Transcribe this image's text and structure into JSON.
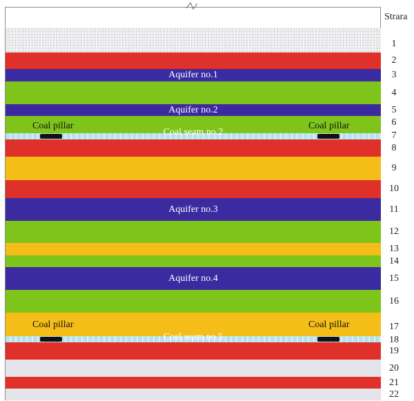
{
  "header": {
    "strata_label": "Strara"
  },
  "layers": [
    {
      "num": "1",
      "color": "#e8e8ea",
      "kind": "soil"
    },
    {
      "num": "2",
      "color": "#e0302a"
    },
    {
      "num": "3",
      "color": "#3b2aa0",
      "label": "Aquifer no.1"
    },
    {
      "num": "4",
      "color": "#7ec41a"
    },
    {
      "num": "5",
      "color": "#3b2aa0",
      "label": "Aquifer no.2"
    },
    {
      "num": "6",
      "color": "#7ec41a"
    },
    {
      "num": "7",
      "color": "#b5e2ef",
      "kind": "seam"
    },
    {
      "num": "8",
      "color": "#e0302a"
    },
    {
      "num": "9",
      "color": "#f5bd18"
    },
    {
      "num": "10",
      "color": "#e0302a"
    },
    {
      "num": "11",
      "color": "#3b2aa0",
      "label": "Aquifer no.3"
    },
    {
      "num": "12",
      "color": "#7ec41a"
    },
    {
      "num": "13",
      "color": "#f5bd18"
    },
    {
      "num": "14",
      "color": "#7ec41a"
    },
    {
      "num": "15",
      "color": "#3b2aa0",
      "label": "Aquifer no.4"
    },
    {
      "num": "16",
      "color": "#7ec41a"
    },
    {
      "num": "17",
      "color": "#f5bd18"
    },
    {
      "num": "18",
      "color": "#b5e2ef",
      "kind": "seam"
    },
    {
      "num": "19",
      "color": "#e0302a"
    },
    {
      "num": "20",
      "color": "#e4e4ea"
    },
    {
      "num": "21",
      "color": "#e0302a"
    },
    {
      "num": "22",
      "color": "#e4e4ea"
    }
  ],
  "annotations": {
    "upper_pillar_left": "Coal pillar",
    "upper_pillar_right": "Coal pillar",
    "upper_seam": "Coal seam no.2",
    "lower_pillar_left": "Coal pillar",
    "lower_pillar_right": "Coal pillar",
    "lower_seam": "Coal seam no.5"
  }
}
